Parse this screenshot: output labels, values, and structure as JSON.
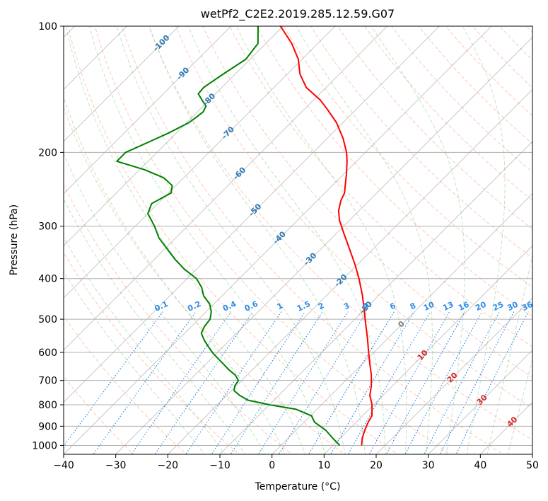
{
  "chart_data": {
    "type": "line",
    "title": "wetPf2_C2E2.2019.285.12.59.G07",
    "xlabel": "Temperature (°C)",
    "ylabel": "Pressure (hPa)",
    "xlim": [
      -40,
      50
    ],
    "ylim": [
      1050,
      100
    ],
    "x_ticks": [
      "−40",
      "−30",
      "−20",
      "−10",
      "0",
      "10",
      "20",
      "30",
      "40",
      "50"
    ],
    "y_ticks": [
      "100",
      "200",
      "300",
      "400",
      "500",
      "600",
      "700",
      "800",
      "900",
      "1000"
    ],
    "y_scale": "log",
    "skew": "45°",
    "grid": true,
    "series": [
      {
        "color": "#ff0000",
        "p": [
          1000,
          960,
          920,
          880,
          850,
          800,
          760,
          720,
          680,
          640,
          600,
          560,
          520,
          480,
          440,
          400,
          370,
          340,
          310,
          290,
          275,
          260,
          250,
          240,
          225,
          210,
          200,
          185,
          170,
          158,
          150,
          145,
          140,
          130,
          120,
          110,
          100
        ],
        "t": [
          15.5,
          14.2,
          13.2,
          12.3,
          11.8,
          9.7,
          7.5,
          5.9,
          3.9,
          1.5,
          -1.0,
          -3.6,
          -6.5,
          -9.6,
          -13.0,
          -17.0,
          -20.5,
          -24.5,
          -28.9,
          -32.0,
          -34.0,
          -35.5,
          -36.2,
          -37.5,
          -39.5,
          -41.8,
          -43.6,
          -47.0,
          -51.2,
          -55.5,
          -58.7,
          -61.2,
          -63.8,
          -67.6,
          -70.7,
          -75.0,
          -80.5
        ]
      },
      {
        "color": "#008000",
        "p": [
          1000,
          960,
          920,
          880,
          850,
          820,
          800,
          780,
          760,
          740,
          720,
          700,
          680,
          660,
          640,
          620,
          600,
          580,
          560,
          540,
          520,
          500,
          480,
          460,
          440,
          420,
          400,
          380,
          360,
          340,
          320,
          300,
          280,
          265,
          250,
          240,
          230,
          220,
          210,
          200,
          190,
          180,
          170,
          165,
          160,
          155,
          150,
          145,
          140,
          130,
          120,
          110,
          100
        ],
        "t": [
          11.3,
          8.5,
          5.7,
          2.0,
          0.2,
          -4.0,
          -10.0,
          -15.0,
          -17.5,
          -19.5,
          -20.3,
          -20.6,
          -22.2,
          -24.5,
          -26.6,
          -28.8,
          -31.0,
          -33.0,
          -35.0,
          -36.8,
          -37.5,
          -37.8,
          -39.0,
          -40.8,
          -43.5,
          -45.5,
          -48.2,
          -52.3,
          -56.0,
          -59.5,
          -63.2,
          -66.3,
          -70.0,
          -71.2,
          -69.5,
          -70.7,
          -73.8,
          -79.0,
          -86.0,
          -86.0,
          -83.8,
          -81.5,
          -79.6,
          -79.2,
          -78.9,
          -79.5,
          -81.4,
          -83.3,
          -83.5,
          -82.3,
          -80.8,
          -81.5,
          -84.8
        ]
      }
    ],
    "isotherm_labels": [
      "-100",
      "-90",
      "-80",
      "-70",
      "-60",
      "-50",
      "-40",
      "-30",
      "-20",
      "-10",
      "0",
      "10",
      "20",
      "30",
      "40"
    ],
    "mixing_ratio_labels": [
      "0.1",
      "0.2",
      "0.4",
      "0.6",
      "1",
      "1.5",
      "2",
      "3",
      "4",
      "6",
      "8",
      "10",
      "13",
      "16",
      "20",
      "25",
      "30",
      "36"
    ],
    "colors": {
      "grid": "#b0b0b0",
      "isotherm": "#808080",
      "dry_adiabat": "#fb9f7c",
      "moist_adiabat": "#87c587",
      "mixing_ratio": "#1f86e0",
      "isotherm_label": "#2c78b4",
      "mr_label": "#2f8ee8",
      "moist_label": "#d62728"
    }
  }
}
